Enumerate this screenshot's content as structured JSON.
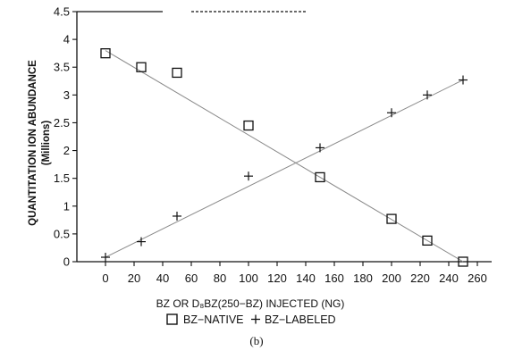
{
  "chart_data": {
    "type": "scatter",
    "xlabel": "BZ OR D₈BZ(250−BZ) INJECTED (NG)",
    "ylabel": "QUANTITATION ION ABUNDANCE",
    "ylabel_unit": "(Millions)",
    "panel_label": "(b)",
    "xlim": [
      -20,
      270
    ],
    "ylim": [
      0,
      4.5
    ],
    "x_ticks": [
      0,
      20,
      40,
      60,
      80,
      100,
      120,
      140,
      160,
      180,
      200,
      220,
      240,
      260
    ],
    "x_tick_labels": [
      "0",
      "20",
      "40",
      "60",
      "80",
      "100",
      "120",
      "140",
      "160",
      "180",
      "200",
      "220",
      "240",
      "260"
    ],
    "y_ticks": [
      0,
      0.5,
      1,
      1.5,
      2,
      2.5,
      3,
      3.5,
      4,
      4.5
    ],
    "y_tick_labels": [
      "0",
      "0.5",
      "1",
      "1.5",
      "2",
      "2.5",
      "3",
      "3.5",
      "4",
      "4.5"
    ],
    "grid": false,
    "legend_position": "bottom",
    "series": [
      {
        "name": "BZ−NATIVE",
        "marker": "square",
        "x": [
          0,
          25,
          50,
          100,
          150,
          200,
          225,
          250
        ],
        "y": [
          3.75,
          3.5,
          3.4,
          2.45,
          1.52,
          0.77,
          0.38,
          0.0
        ],
        "fit": [
          [
            0,
            3.8
          ],
          [
            250,
            0.0
          ]
        ]
      },
      {
        "name": "BZ−LABELED",
        "marker": "plus",
        "x": [
          0,
          25,
          50,
          100,
          150,
          200,
          225,
          250
        ],
        "y": [
          0.08,
          0.36,
          0.82,
          1.54,
          2.05,
          2.68,
          3.0,
          3.27
        ],
        "fit": [
          [
            0,
            0.08
          ],
          [
            250,
            3.27
          ]
        ]
      }
    ],
    "colors": {
      "ink": "#111111",
      "fit_line": "#8a8a8a"
    }
  }
}
